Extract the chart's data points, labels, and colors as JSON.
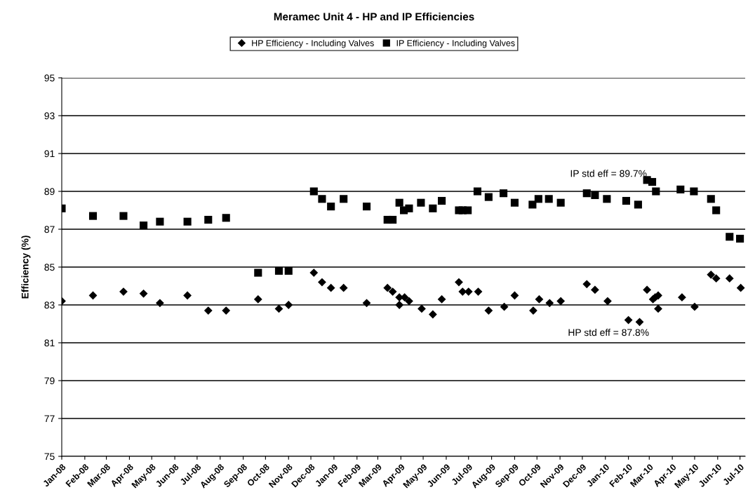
{
  "chart_data": {
    "type": "scatter",
    "title": "Meramec Unit 4 - HP and IP Efficiencies",
    "ylabel": "Efficiency (%)",
    "series": [
      {
        "name": "HP Efficiency - Including Valves",
        "color": "#000000",
        "marker": "diamond",
        "x": [
          "2008-01-01",
          "2008-02-12",
          "2008-03-24",
          "2008-04-20",
          "2008-05-12",
          "2008-06-18",
          "2008-07-16",
          "2008-08-09",
          "2008-09-21",
          "2008-10-19",
          "2008-11-01",
          "2008-12-05",
          "2008-12-16",
          "2008-12-28",
          "2009-01-14",
          "2009-02-14",
          "2009-03-14",
          "2009-03-21",
          "2009-03-30",
          "2009-03-30",
          "2009-04-06",
          "2009-04-12",
          "2009-04-29",
          "2009-05-14",
          "2009-05-26",
          "2009-06-18",
          "2009-06-23",
          "2009-07-01",
          "2009-07-14",
          "2009-07-28",
          "2009-08-18",
          "2009-09-01",
          "2009-09-26",
          "2009-10-04",
          "2009-10-18",
          "2009-11-02",
          "2009-12-07",
          "2009-12-18",
          "2010-01-04",
          "2010-02-01",
          "2010-02-16",
          "2010-02-26",
          "2010-03-06",
          "2010-03-09",
          "2010-03-13",
          "2010-03-13",
          "2010-04-14",
          "2010-05-01",
          "2010-05-23",
          "2010-05-30",
          "2010-06-17",
          "2010-07-02"
        ],
        "values": [
          83.2,
          83.5,
          83.7,
          83.6,
          83.1,
          83.5,
          82.7,
          82.7,
          83.3,
          82.8,
          83.0,
          84.7,
          84.2,
          83.9,
          83.9,
          83.1,
          83.9,
          83.7,
          83.4,
          83.0,
          83.4,
          83.2,
          82.8,
          82.5,
          83.3,
          84.2,
          83.7,
          83.7,
          83.7,
          82.7,
          82.9,
          83.5,
          82.7,
          83.3,
          83.1,
          83.2,
          84.1,
          83.8,
          83.2,
          82.2,
          82.1,
          83.8,
          83.3,
          83.4,
          83.5,
          82.8,
          83.4,
          82.9,
          84.6,
          84.4,
          84.4,
          83.9
        ]
      },
      {
        "name": "IP Efficiency - Including Valves",
        "color": "#000000",
        "marker": "square",
        "x": [
          "2008-01-01",
          "2008-02-12",
          "2008-03-24",
          "2008-04-20",
          "2008-05-12",
          "2008-06-18",
          "2008-07-16",
          "2008-08-09",
          "2008-09-21",
          "2008-10-19",
          "2008-11-01",
          "2008-12-05",
          "2008-12-16",
          "2008-12-28",
          "2009-01-14",
          "2009-02-14",
          "2009-03-14",
          "2009-03-21",
          "2009-03-30",
          "2009-04-05",
          "2009-04-12",
          "2009-04-28",
          "2009-05-14",
          "2009-05-26",
          "2009-06-18",
          "2009-06-23",
          "2009-06-30",
          "2009-07-13",
          "2009-07-28",
          "2009-08-17",
          "2009-09-01",
          "2009-09-25",
          "2009-10-03",
          "2009-10-17",
          "2009-11-02",
          "2009-12-07",
          "2009-12-18",
          "2010-01-03",
          "2010-01-29",
          "2010-02-14",
          "2010-02-26",
          "2010-03-05",
          "2010-03-10",
          "2010-04-12",
          "2010-04-30",
          "2010-05-23",
          "2010-05-30",
          "2010-06-17",
          "2010-07-01"
        ],
        "values": [
          88.1,
          87.7,
          87.7,
          87.2,
          87.4,
          87.4,
          87.5,
          87.6,
          84.7,
          84.8,
          84.8,
          89.0,
          88.6,
          88.2,
          88.6,
          88.2,
          87.5,
          87.5,
          88.4,
          88.0,
          88.1,
          88.4,
          88.1,
          88.5,
          88.0,
          88.0,
          88.0,
          89.0,
          88.7,
          88.9,
          88.4,
          88.3,
          88.6,
          88.6,
          88.4,
          88.9,
          88.8,
          88.6,
          88.5,
          88.3,
          89.6,
          89.5,
          89.0,
          89.1,
          89.0,
          88.6,
          88.0,
          86.6,
          86.5
        ]
      }
    ],
    "annotations": [
      "IP std eff = 89.7%",
      "HP std eff = 87.8%"
    ],
    "xlim": [
      "2008-01-01",
      "2010-07-08"
    ],
    "xticks": [
      {
        "value": "2008-01-01",
        "label": "Jan-08"
      },
      {
        "value": "2008-02-01",
        "label": "Feb-08"
      },
      {
        "value": "2008-03-01",
        "label": "Mar-08"
      },
      {
        "value": "2008-04-01",
        "label": "Apr-08"
      },
      {
        "value": "2008-05-01",
        "label": "May-08"
      },
      {
        "value": "2008-06-01",
        "label": "Jun-08"
      },
      {
        "value": "2008-07-01",
        "label": "Jul-08"
      },
      {
        "value": "2008-08-01",
        "label": "Aug-08"
      },
      {
        "value": "2008-09-01",
        "label": "Sep-08"
      },
      {
        "value": "2008-10-01",
        "label": "Oct-08"
      },
      {
        "value": "2008-11-01",
        "label": "Nov-08"
      },
      {
        "value": "2008-12-01",
        "label": "Dec-08"
      },
      {
        "value": "2009-01-01",
        "label": "Jan-09"
      },
      {
        "value": "2009-02-01",
        "label": "Feb-09"
      },
      {
        "value": "2009-03-01",
        "label": "Mar-09"
      },
      {
        "value": "2009-04-01",
        "label": "Apr-09"
      },
      {
        "value": "2009-05-01",
        "label": "May-09"
      },
      {
        "value": "2009-06-01",
        "label": "Jun-09"
      },
      {
        "value": "2009-07-01",
        "label": "Jul-09"
      },
      {
        "value": "2009-08-01",
        "label": "Aug-09"
      },
      {
        "value": "2009-09-01",
        "label": "Sep-09"
      },
      {
        "value": "2009-10-01",
        "label": "Oct-09"
      },
      {
        "value": "2009-11-01",
        "label": "Nov-09"
      },
      {
        "value": "2009-12-01",
        "label": "Dec-09"
      },
      {
        "value": "2010-01-01",
        "label": "Jan-10"
      },
      {
        "value": "2010-02-01",
        "label": "Feb-10"
      },
      {
        "value": "2010-03-01",
        "label": "Mar-10"
      },
      {
        "value": "2010-04-01",
        "label": "Apr-10"
      },
      {
        "value": "2010-05-01",
        "label": "May-10"
      },
      {
        "value": "2010-06-01",
        "label": "Jun-10"
      },
      {
        "value": "2010-07-01",
        "label": "Jul-10"
      }
    ],
    "ylim": [
      75,
      95
    ],
    "yticks": [
      75,
      77,
      79,
      81,
      83,
      85,
      87,
      89,
      91,
      93,
      95
    ],
    "grid": "y",
    "legend": "top"
  }
}
